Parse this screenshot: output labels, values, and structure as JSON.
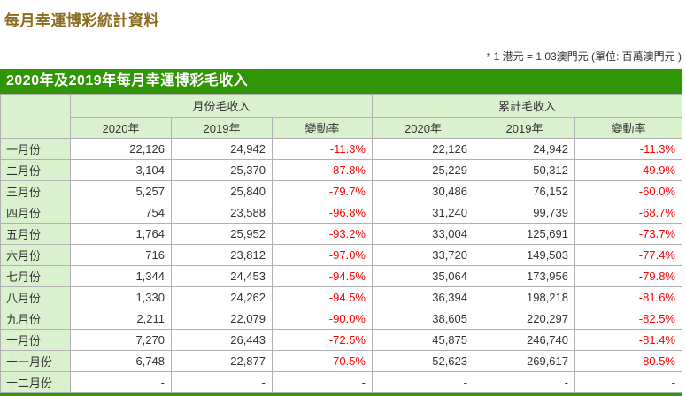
{
  "page": {
    "title": "每月幸運博彩統計資料",
    "note": "* 1 港元 = 1.03澳門元 (單位: 百萬澳門元 )"
  },
  "table": {
    "caption": "2020年及2019年每月幸運博彩毛收入",
    "group_headers": [
      "月份毛收入",
      "累計毛收入"
    ],
    "col_headers": [
      "2020年",
      "2019年",
      "變動率"
    ],
    "rows": [
      [
        "一月份",
        "22,126",
        "24,942",
        "-11.3%",
        "22,126",
        "24,942",
        "-11.3%"
      ],
      [
        "二月份",
        "3,104",
        "25,370",
        "-87.8%",
        "25,229",
        "50,312",
        "-49.9%"
      ],
      [
        "三月份",
        "5,257",
        "25,840",
        "-79.7%",
        "30,486",
        "76,152",
        "-60.0%"
      ],
      [
        "四月份",
        "754",
        "23,588",
        "-96.8%",
        "31,240",
        "99,739",
        "-68.7%"
      ],
      [
        "五月份",
        "1,764",
        "25,952",
        "-93.2%",
        "33,004",
        "125,691",
        "-73.7%"
      ],
      [
        "六月份",
        "716",
        "23,812",
        "-97.0%",
        "33,720",
        "149,503",
        "-77.4%"
      ],
      [
        "七月份",
        "1,344",
        "24,453",
        "-94.5%",
        "35,064",
        "173,956",
        "-79.8%"
      ],
      [
        "八月份",
        "1,330",
        "24,262",
        "-94.5%",
        "36,394",
        "198,218",
        "-81.6%"
      ],
      [
        "九月份",
        "2,211",
        "22,079",
        "-90.0%",
        "38,605",
        "220,297",
        "-82.5%"
      ],
      [
        "十月份",
        "7,270",
        "26,443",
        "-72.5%",
        "45,875",
        "246,740",
        "-81.4%"
      ],
      [
        "十一月份",
        "6,748",
        "22,877",
        "-70.5%",
        "52,623",
        "269,617",
        "-80.5%"
      ],
      [
        "十二月份",
        "-",
        "-",
        "-",
        "-",
        "-",
        "-"
      ]
    ]
  },
  "colors": {
    "accent_green": "#309606",
    "light_green": "#d9f2cd",
    "title_gold": "#8a6d1e",
    "negative_red": "#ff0000",
    "border_gray": "#b0b0b0"
  }
}
